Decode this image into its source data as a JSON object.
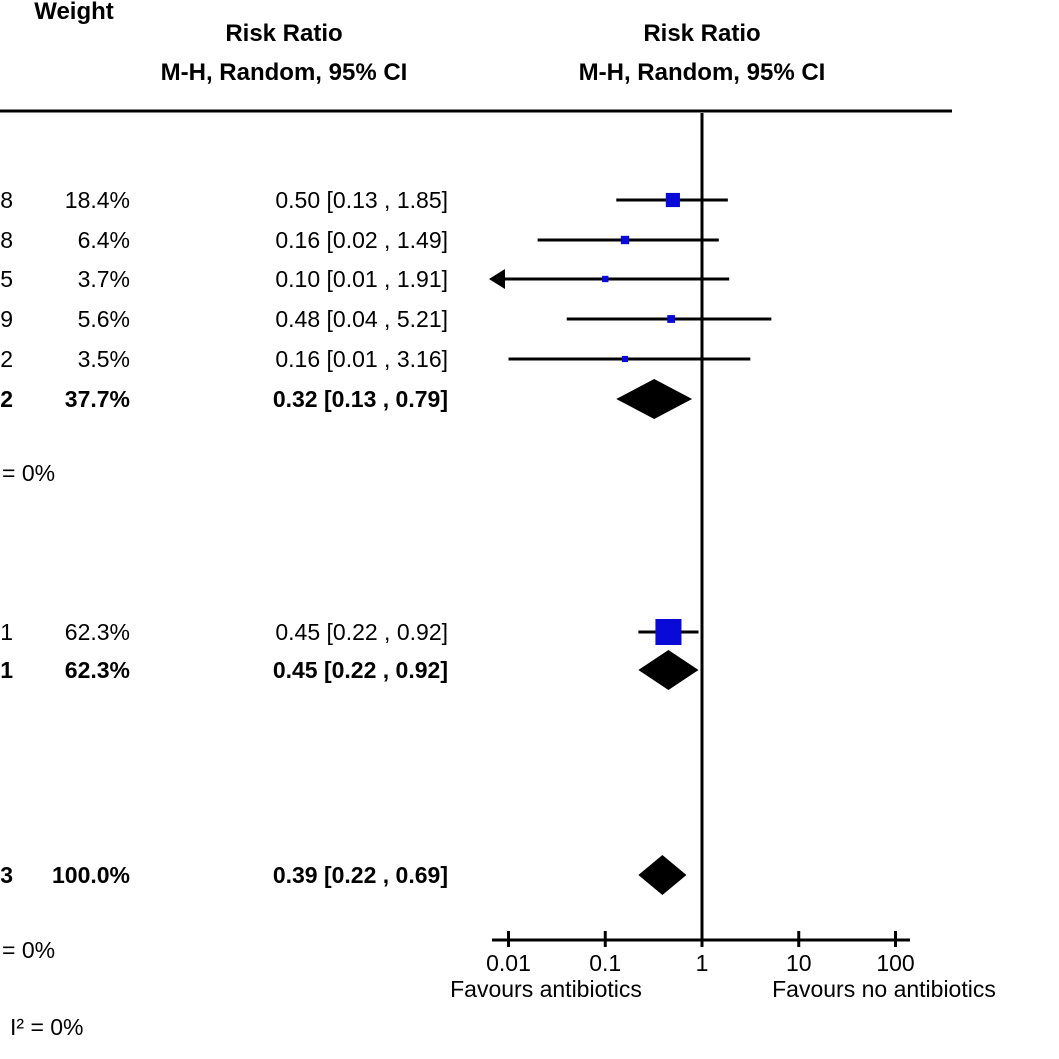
{
  "header": {
    "weight_label": "Weight",
    "left": {
      "line1": "Risk Ratio",
      "line2": "M-H, Random, 95% CI"
    },
    "right": {
      "line1": "Risk Ratio",
      "line2": "M-H, Random, 95% CI"
    }
  },
  "stats": {
    "subgroup1_heterogeneity": "= 0%",
    "overall_heterogeneity": "= 0%",
    "subgroup_difference": "I² = 0%"
  },
  "colors": {
    "square": "#0909D8",
    "line": "#000000",
    "diamond": "#000000",
    "text": "#000000"
  },
  "chart_data": {
    "type": "forest",
    "effect_measure": "Risk Ratio",
    "model": "M-H, Random, 95% CI",
    "x_axis": {
      "scale": "log10",
      "ticks": [
        0.01,
        0.1,
        1,
        10,
        100
      ],
      "tick_labels": [
        "0.01",
        "0.1",
        "1",
        "10",
        "100"
      ],
      "left_label": "Favours antibiotics",
      "right_label": "Favours no antibiotics"
    },
    "rows": [
      {
        "kind": "study",
        "total_digit": "8",
        "weight_text": "18.4%",
        "ci_text": "0.50 [0.13 , 1.85]",
        "est": 0.5,
        "lo": 0.13,
        "hi": 1.85,
        "weight_pct": 18.4,
        "bold": false,
        "clipped_low": false
      },
      {
        "kind": "study",
        "total_digit": "8",
        "weight_text": "6.4%",
        "ci_text": "0.16 [0.02 , 1.49]",
        "est": 0.16,
        "lo": 0.02,
        "hi": 1.49,
        "weight_pct": 6.4,
        "bold": false,
        "clipped_low": false
      },
      {
        "kind": "study",
        "total_digit": "5",
        "weight_text": "3.7%",
        "ci_text": "0.10 [0.01 , 1.91]",
        "est": 0.1,
        "lo": 0.01,
        "hi": 1.91,
        "weight_pct": 3.7,
        "bold": false,
        "clipped_low": true
      },
      {
        "kind": "study",
        "total_digit": "9",
        "weight_text": "5.6%",
        "ci_text": "0.48 [0.04 , 5.21]",
        "est": 0.48,
        "lo": 0.04,
        "hi": 5.21,
        "weight_pct": 5.6,
        "bold": false,
        "clipped_low": false
      },
      {
        "kind": "study",
        "total_digit": "2",
        "weight_text": "3.5%",
        "ci_text": "0.16 [0.01 , 3.16]",
        "est": 0.16,
        "lo": 0.01,
        "hi": 3.16,
        "weight_pct": 3.5,
        "bold": false,
        "clipped_low": false
      },
      {
        "kind": "subtotal",
        "total_digit": "2",
        "weight_text": "37.7%",
        "ci_text": "0.32 [0.13 , 0.79]",
        "est": 0.32,
        "lo": 0.13,
        "hi": 0.79,
        "weight_pct": 37.7,
        "bold": true,
        "clipped_low": false
      },
      {
        "kind": "study",
        "total_digit": "1",
        "weight_text": "62.3%",
        "ci_text": "0.45 [0.22 , 0.92]",
        "est": 0.45,
        "lo": 0.22,
        "hi": 0.92,
        "weight_pct": 62.3,
        "bold": false,
        "clipped_low": false
      },
      {
        "kind": "subtotal",
        "total_digit": "1",
        "weight_text": "62.3%",
        "ci_text": "0.45 [0.22 , 0.92]",
        "est": 0.45,
        "lo": 0.22,
        "hi": 0.92,
        "weight_pct": 62.3,
        "bold": true,
        "clipped_low": false
      },
      {
        "kind": "total",
        "total_digit": "3",
        "weight_text": "100.0%",
        "ci_text": "0.39 [0.22 , 0.69]",
        "est": 0.39,
        "lo": 0.22,
        "hi": 0.69,
        "weight_pct": 100.0,
        "bold": true,
        "clipped_low": false
      }
    ]
  }
}
